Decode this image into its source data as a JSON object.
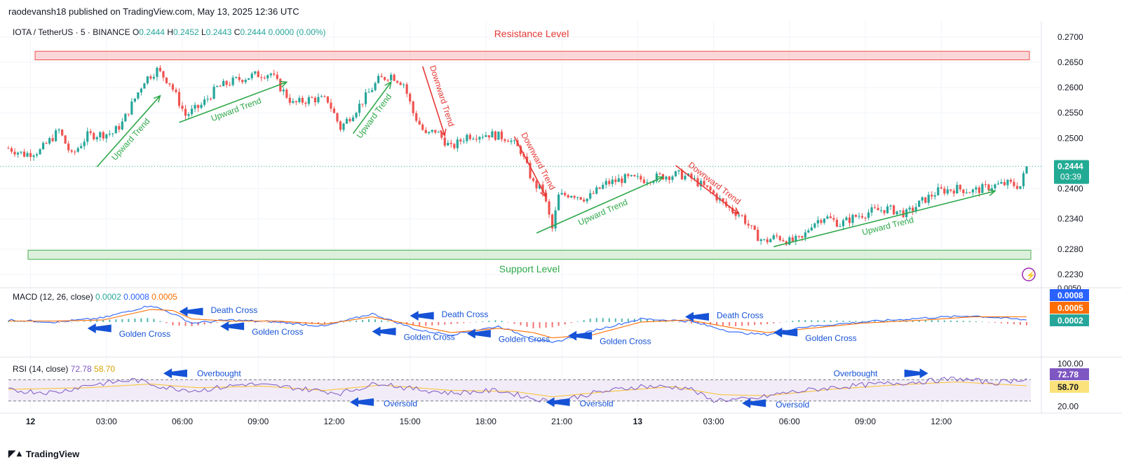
{
  "header": {
    "published_line": "raodevansh18 published on TradingView.com, May 13, 2025 12:36 UTC"
  },
  "brand": {
    "name": "TradingView"
  },
  "legend": {
    "symbol": "IOTA / TetherUS · 5 · BINANCE",
    "o_label": "O",
    "o": "0.2444",
    "h_label": "H",
    "h": "0.2452",
    "l_label": "L",
    "l": "0.2443",
    "c_label": "C",
    "c": "0.2444",
    "change": "0.0000 (0.00%)"
  },
  "colors": {
    "up": "#26a69a",
    "down": "#ef5350",
    "resistance_fill": "#f8c9cc",
    "resistance_border": "#ef5350",
    "support_fill": "#d3ecd3",
    "support_border": "#4caf50",
    "annotation_green": "#2ea84a",
    "annotation_red": "#e53935",
    "annotation_blue": "#1552d6",
    "macd_line": "#2962ff",
    "signal_line": "#ff6d00",
    "rsi_line": "#7e57c2",
    "rsi_ma": "#fbc02d",
    "rsi_band": "#ede7f6"
  },
  "chart_data": [
    {
      "type": "candlestick",
      "title": "IOTA / TetherUS · 5 · BINANCE",
      "ylim": [
        0.2205,
        0.2725
      ],
      "y_ticks": [
        "0.2700",
        "0.2650",
        "0.2600",
        "0.2550",
        "0.2500",
        "0.2400",
        "0.2340",
        "0.2280",
        "0.2230"
      ],
      "x_ticks": [
        "12",
        "03:00",
        "06:00",
        "09:00",
        "12:00",
        "15:00",
        "18:00",
        "21:00",
        "13",
        "03:00",
        "06:00",
        "09:00",
        "12:00"
      ],
      "price_path": [
        [
          0,
          0.248
        ],
        [
          5,
          0.2468
        ],
        [
          10,
          0.2475
        ],
        [
          16,
          0.2515
        ],
        [
          20,
          0.2465
        ],
        [
          25,
          0.2505
        ],
        [
          33,
          0.251
        ],
        [
          36,
          0.253
        ],
        [
          43,
          0.2615
        ],
        [
          47,
          0.2635
        ],
        [
          51,
          0.261
        ],
        [
          56,
          0.2545
        ],
        [
          61,
          0.2565
        ],
        [
          66,
          0.26
        ],
        [
          72,
          0.2615
        ],
        [
          78,
          0.2625
        ],
        [
          83,
          0.2628
        ],
        [
          86,
          0.26
        ],
        [
          90,
          0.2568
        ],
        [
          96,
          0.2578
        ],
        [
          101,
          0.2575
        ],
        [
          105,
          0.252
        ],
        [
          111,
          0.2565
        ],
        [
          117,
          0.2615
        ],
        [
          121,
          0.2625
        ],
        [
          125,
          0.2608
        ],
        [
          128,
          0.255
        ],
        [
          132,
          0.2505
        ],
        [
          135,
          0.2515
        ],
        [
          140,
          0.248
        ],
        [
          145,
          0.2505
        ],
        [
          152,
          0.2508
        ],
        [
          158,
          0.25
        ],
        [
          162,
          0.2475
        ],
        [
          166,
          0.241
        ],
        [
          169,
          0.2395
        ],
        [
          172,
          0.232
        ],
        [
          174,
          0.2385
        ],
        [
          178,
          0.239
        ],
        [
          183,
          0.238
        ],
        [
          189,
          0.241
        ],
        [
          195,
          0.242
        ],
        [
          201,
          0.2418
        ],
        [
          207,
          0.2425
        ],
        [
          212,
          0.2428
        ],
        [
          216,
          0.242
        ],
        [
          222,
          0.2395
        ],
        [
          227,
          0.2365
        ],
        [
          232,
          0.2345
        ],
        [
          236,
          0.231
        ],
        [
          239,
          0.2295
        ],
        [
          243,
          0.2305
        ],
        [
          247,
          0.2295
        ],
        [
          251,
          0.23
        ],
        [
          254,
          0.233
        ],
        [
          258,
          0.2345
        ],
        [
          263,
          0.233
        ],
        [
          268,
          0.2345
        ],
        [
          273,
          0.2355
        ],
        [
          278,
          0.236
        ],
        [
          284,
          0.235
        ],
        [
          289,
          0.2375
        ],
        [
          294,
          0.2395
        ],
        [
          300,
          0.24
        ],
        [
          305,
          0.2395
        ],
        [
          311,
          0.2405
        ],
        [
          316,
          0.241
        ],
        [
          320,
          0.2405
        ],
        [
          322,
          0.2444
        ]
      ],
      "last_price": "0.2444",
      "countdown": "03:39",
      "zones": [
        {
          "name": "Resistance Level",
          "low": 0.2655,
          "high": 0.2672
        },
        {
          "name": "Support Level",
          "low": 0.226,
          "high": 0.2278
        }
      ],
      "annotations": [
        {
          "text": "Upward Trend",
          "kind": "up",
          "from": [
            28,
            0.2443
          ],
          "to": [
            48,
            0.2584
          ]
        },
        {
          "text": "Upward Trend",
          "kind": "up",
          "from": [
            54,
            0.2531
          ],
          "to": [
            88,
            0.2611
          ]
        },
        {
          "text": "Upward Trend",
          "kind": "up",
          "from": [
            109,
            0.2509
          ],
          "to": [
            121,
            0.2611
          ]
        },
        {
          "text": "Downward Trend",
          "kind": "down",
          "from": [
            131,
            0.2642
          ],
          "to": [
            138,
            0.2505
          ]
        },
        {
          "text": "Downward Trend",
          "kind": "down",
          "from": [
            160,
            0.2503
          ],
          "to": [
            170,
            0.2384
          ]
        },
        {
          "text": "Upward Trend",
          "kind": "up",
          "from": [
            167,
            0.2312
          ],
          "to": [
            207,
            0.2423
          ]
        },
        {
          "text": "Downward Trend",
          "kind": "down",
          "from": [
            211,
            0.2446
          ],
          "to": [
            231,
            0.235
          ]
        },
        {
          "text": "Upward Trend",
          "kind": "up",
          "from": [
            242,
            0.2285
          ],
          "to": [
            312,
            0.2395
          ]
        }
      ]
    },
    {
      "type": "line",
      "title": "MACD (12, 26, close)",
      "legend_values": [
        "0.0002",
        "0.0008",
        "0.0005"
      ],
      "axis_top_value": "0.0050",
      "badges": [
        "0.0008",
        "0.0005",
        "0.0002"
      ],
      "series": [
        {
          "name": "MACD",
          "points": [
            [
              0,
              0.0002
            ],
            [
              15,
              0.0
            ],
            [
              30,
              0.0004
            ],
            [
              45,
              0.0016
            ],
            [
              52,
              0.0008
            ],
            [
              58,
              -0.0001
            ],
            [
              70,
              0.0002
            ],
            [
              85,
              0.0
            ],
            [
              100,
              -0.0004
            ],
            [
              115,
              0.0008
            ],
            [
              130,
              -0.0008
            ],
            [
              140,
              -0.0012
            ],
            [
              155,
              -0.0004
            ],
            [
              166,
              -0.0016
            ],
            [
              172,
              -0.002
            ],
            [
              185,
              -0.0008
            ],
            [
              200,
              0.0003
            ],
            [
              215,
              0.0001
            ],
            [
              230,
              -0.001
            ],
            [
              240,
              -0.0012
            ],
            [
              250,
              -0.0005
            ],
            [
              270,
              0.0
            ],
            [
              290,
              0.0004
            ],
            [
              305,
              0.0006
            ],
            [
              322,
              0.0002
            ]
          ]
        },
        {
          "name": "Signal",
          "points": [
            [
              0,
              0.0001
            ],
            [
              15,
              0.0001
            ],
            [
              30,
              0.0002
            ],
            [
              45,
              0.0012
            ],
            [
              52,
              0.0011
            ],
            [
              58,
              0.0003
            ],
            [
              70,
              0.0001
            ],
            [
              85,
              0.0001
            ],
            [
              100,
              -0.0002
            ],
            [
              115,
              0.0005
            ],
            [
              130,
              -0.0004
            ],
            [
              140,
              -0.001
            ],
            [
              155,
              -0.0006
            ],
            [
              166,
              -0.001
            ],
            [
              172,
              -0.0015
            ],
            [
              185,
              -0.0012
            ],
            [
              200,
              0.0
            ],
            [
              215,
              0.0002
            ],
            [
              230,
              -0.0006
            ],
            [
              240,
              -0.001
            ],
            [
              250,
              -0.0007
            ],
            [
              270,
              -0.0001
            ],
            [
              290,
              0.0002
            ],
            [
              305,
              0.0005
            ],
            [
              322,
              0.0005
            ]
          ]
        }
      ],
      "annotations": [
        {
          "text": "Death Cross",
          "at": [
            54,
            0.001
          ]
        },
        {
          "text": "Golden Cross",
          "at": [
            25,
            -0.0006
          ]
        },
        {
          "text": "Golden Cross",
          "at": [
            67,
            -0.0004
          ]
        },
        {
          "text": "Death Cross",
          "at": [
            127,
            0.0006
          ]
        },
        {
          "text": "Golden Cross",
          "at": [
            115,
            -0.0009
          ]
        },
        {
          "text": "Golden Cross",
          "at": [
            145,
            -0.0011
          ]
        },
        {
          "text": "Golden Cross",
          "at": [
            177,
            -0.0013
          ]
        },
        {
          "text": "Death Cross",
          "at": [
            214,
            0.0005
          ]
        },
        {
          "text": "Golden Cross",
          "at": [
            242,
            -0.001
          ]
        }
      ]
    },
    {
      "type": "line",
      "title": "RSI (14, close)",
      "legend_values": [
        "72.78",
        "58.70"
      ],
      "ylim": [
        10,
        110
      ],
      "y_ticks": [
        "100.00",
        "20.00"
      ],
      "bands": [
        30,
        70
      ],
      "badges": [
        "72.78",
        "58.70"
      ],
      "series": [
        {
          "name": "RSI",
          "points": [
            [
              0,
              50
            ],
            [
              15,
              46
            ],
            [
              25,
              60
            ],
            [
              40,
              70
            ],
            [
              50,
              55
            ],
            [
              60,
              50
            ],
            [
              75,
              62
            ],
            [
              90,
              55
            ],
            [
              105,
              45
            ],
            [
              118,
              65
            ],
            [
              125,
              55
            ],
            [
              140,
              45
            ],
            [
              155,
              50
            ],
            [
              166,
              35
            ],
            [
              172,
              28
            ],
            [
              185,
              45
            ],
            [
              200,
              58
            ],
            [
              215,
              55
            ],
            [
              222,
              32
            ],
            [
              235,
              33
            ],
            [
              245,
              45
            ],
            [
              260,
              55
            ],
            [
              270,
              60
            ],
            [
              285,
              65
            ],
            [
              300,
              72
            ],
            [
              312,
              64
            ],
            [
              322,
              72.78
            ]
          ]
        },
        {
          "name": "RSI MA",
          "points": [
            [
              0,
              52
            ],
            [
              25,
              55
            ],
            [
              45,
              62
            ],
            [
              60,
              55
            ],
            [
              80,
              58
            ],
            [
              100,
              50
            ],
            [
              118,
              60
            ],
            [
              140,
              50
            ],
            [
              160,
              48
            ],
            [
              172,
              38
            ],
            [
              190,
              48
            ],
            [
              210,
              57
            ],
            [
              225,
              42
            ],
            [
              240,
              40
            ],
            [
              260,
              52
            ],
            [
              280,
              60
            ],
            [
              300,
              66
            ],
            [
              322,
              58.7
            ]
          ]
        }
      ],
      "annotations": [
        {
          "text": "Overbought",
          "at": [
            49,
            82
          ]
        },
        {
          "text": "Oversold",
          "at": [
            108,
            28
          ]
        },
        {
          "text": "Oversold",
          "at": [
            170,
            28
          ]
        },
        {
          "text": "Overbought",
          "at": [
            282,
            82
          ]
        },
        {
          "text": "Oversold",
          "at": [
            232,
            26
          ]
        }
      ]
    }
  ]
}
